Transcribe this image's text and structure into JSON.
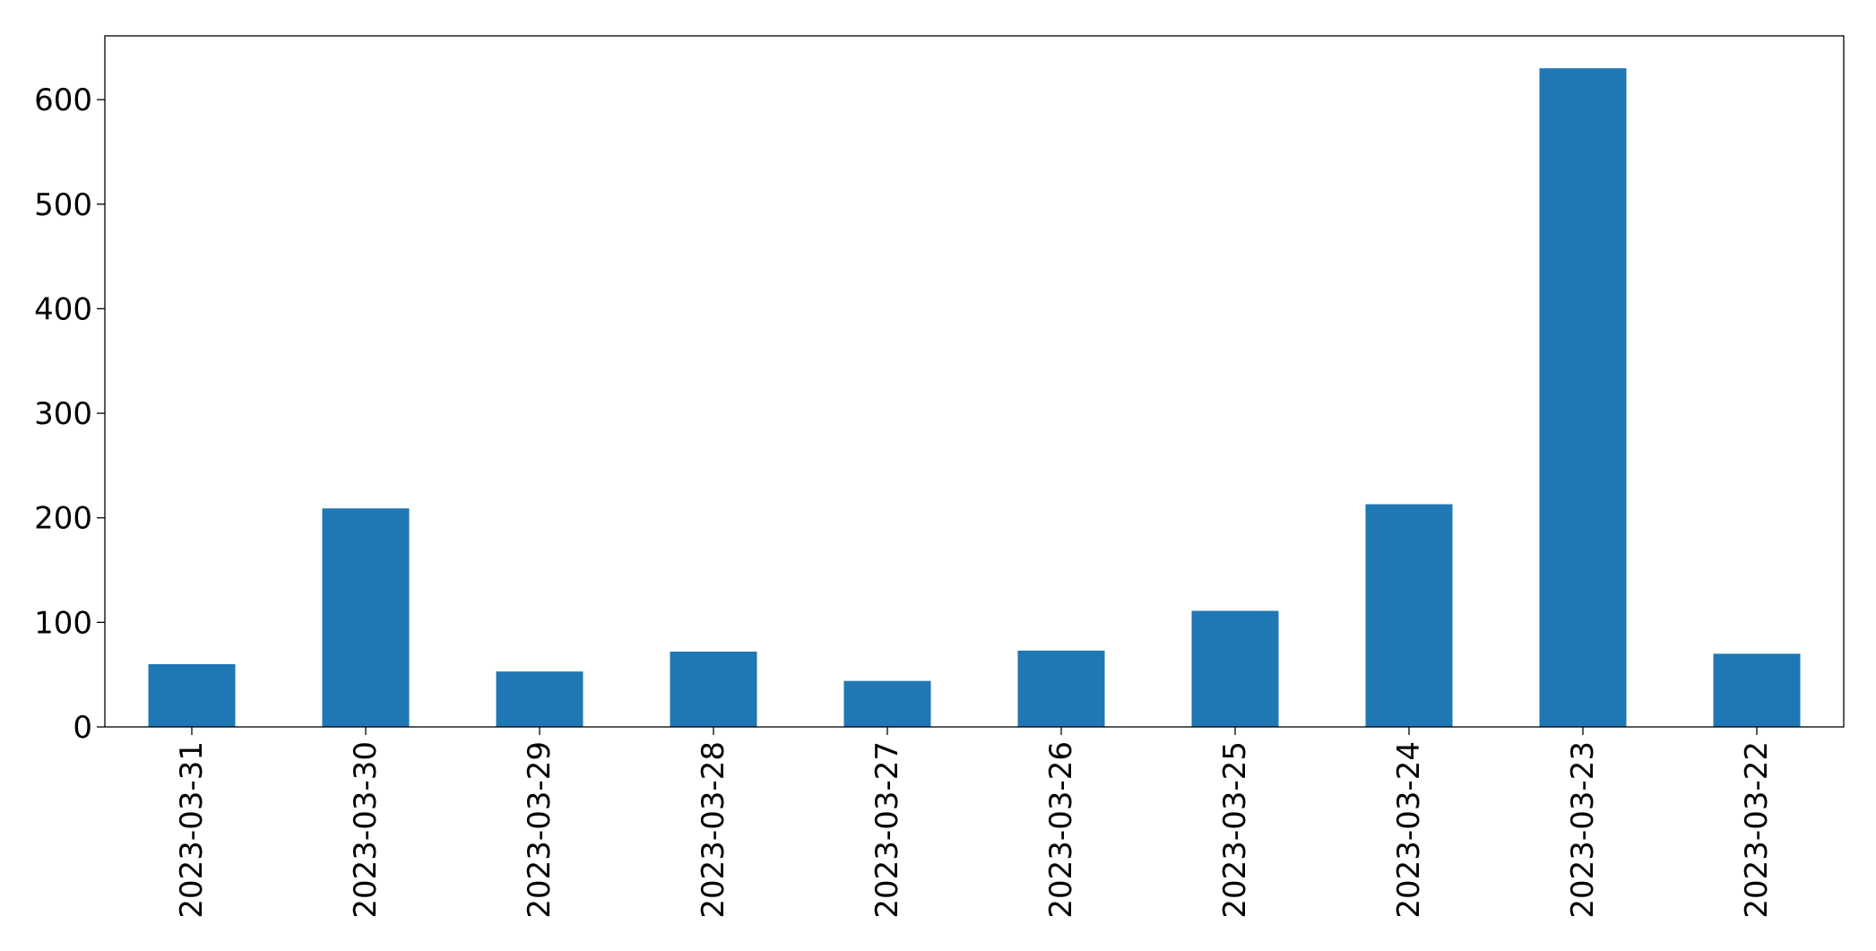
{
  "chart_data": {
    "type": "bar",
    "title": "",
    "xlabel": "",
    "ylabel": "",
    "categories": [
      "2023-03-31",
      "2023-03-30",
      "2023-03-29",
      "2023-03-28",
      "2023-03-27",
      "2023-03-26",
      "2023-03-25",
      "2023-03-24",
      "2023-03-23",
      "2023-03-22"
    ],
    "values": [
      60,
      209,
      53,
      72,
      44,
      73,
      111,
      213,
      630,
      70
    ],
    "ylim": [
      0,
      661
    ],
    "yticks": [
      0,
      100,
      200,
      300,
      400,
      500,
      600
    ],
    "ytick_labels": [
      "0",
      "100",
      "200",
      "300",
      "400",
      "500",
      "600"
    ],
    "bar_color": "#1f77b4",
    "grid": false,
    "legend": "none"
  }
}
